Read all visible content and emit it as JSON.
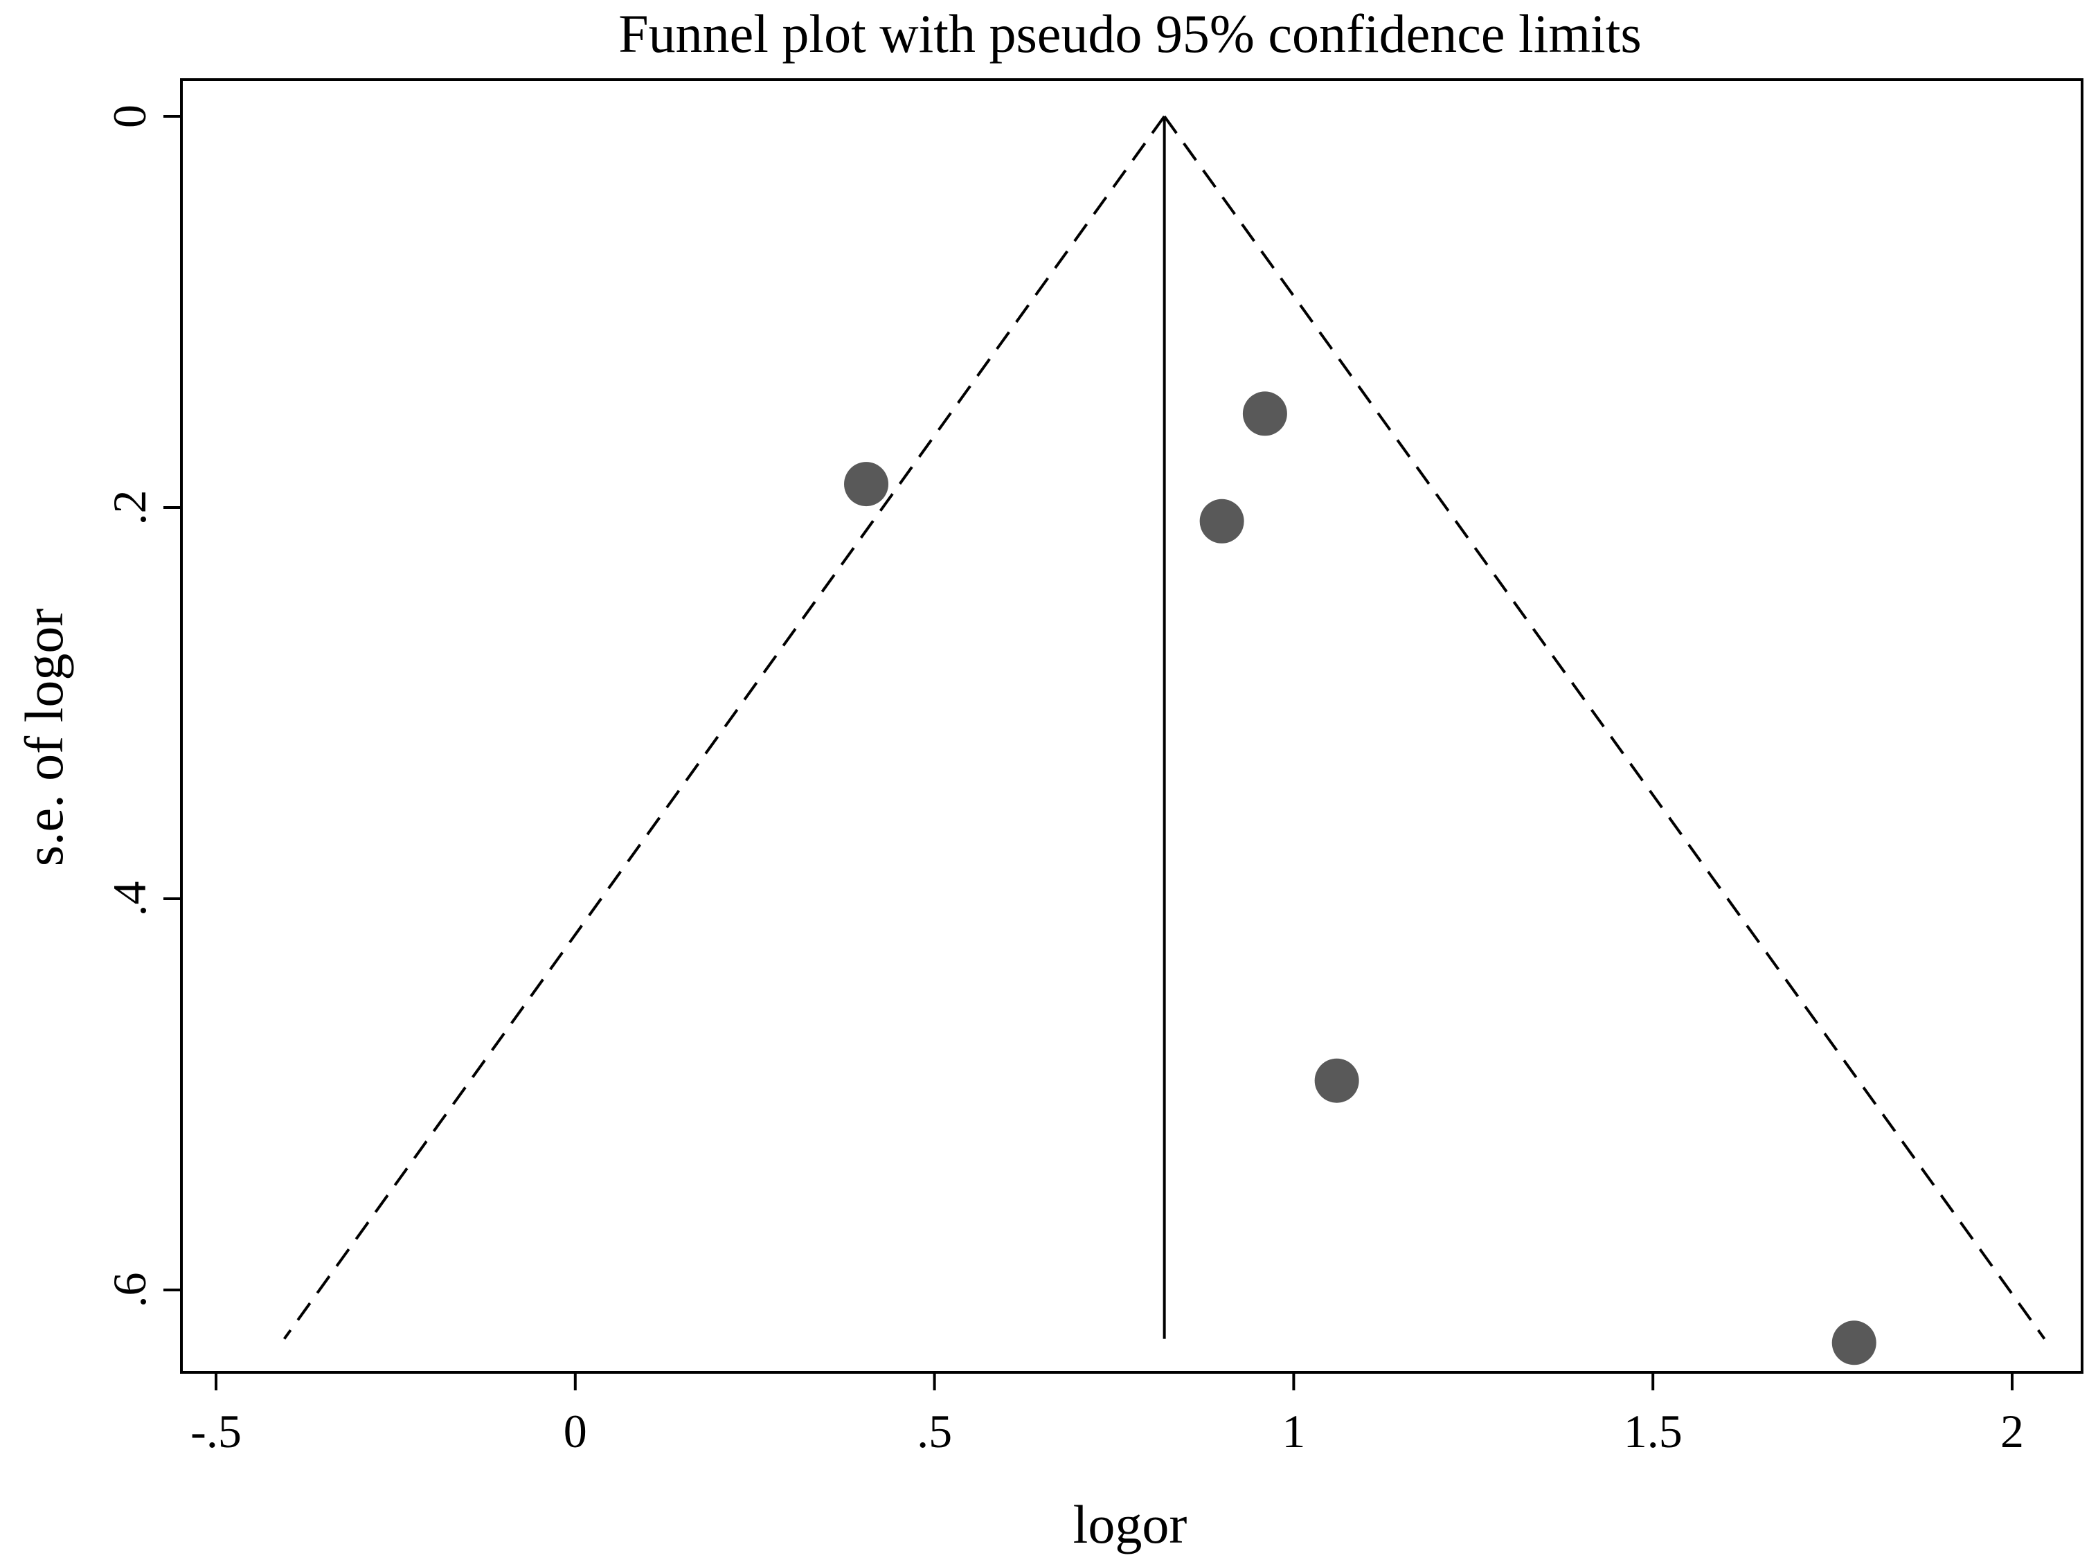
{
  "chart_data": {
    "type": "scatter",
    "subtype": "funnel",
    "title": "Funnel plot with pseudo 95% confidence limits",
    "xlabel": "logor",
    "ylabel": "s.e. of logor",
    "xlim": [
      -0.55,
      2.1
    ],
    "ylim": [
      0,
      0.645
    ],
    "y_reversed": true,
    "grid": false,
    "x_ticks": [
      {
        "value": -0.5,
        "label": "-.5"
      },
      {
        "value": 0,
        "label": "0"
      },
      {
        "value": 0.5,
        "label": ".5"
      },
      {
        "value": 1,
        "label": "1"
      },
      {
        "value": 1.5,
        "label": "1.5"
      },
      {
        "value": 2,
        "label": "2"
      }
    ],
    "y_ticks": [
      {
        "value": 0,
        "label": "0"
      },
      {
        "value": 0.2,
        "label": ".2"
      },
      {
        "value": 0.4,
        "label": ".4"
      },
      {
        "value": 0.6,
        "label": ".6"
      }
    ],
    "pooled_estimate": 0.82,
    "confidence_limits": {
      "se_max": 0.625,
      "left": [
        [
          0.82,
          0
        ],
        [
          -0.405,
          0.625
        ]
      ],
      "right": [
        [
          0.82,
          0
        ],
        [
          2.045,
          0.625
        ]
      ]
    },
    "series": [
      {
        "name": "studies",
        "points": [
          {
            "x": 0.405,
            "y": 0.188
          },
          {
            "x": 0.96,
            "y": 0.152
          },
          {
            "x": 0.9,
            "y": 0.207
          },
          {
            "x": 1.06,
            "y": 0.493
          },
          {
            "x": 1.78,
            "y": 0.627
          }
        ]
      }
    ],
    "colors": {
      "point": "#595959",
      "line": "#000000",
      "background": "#ffffff"
    }
  }
}
